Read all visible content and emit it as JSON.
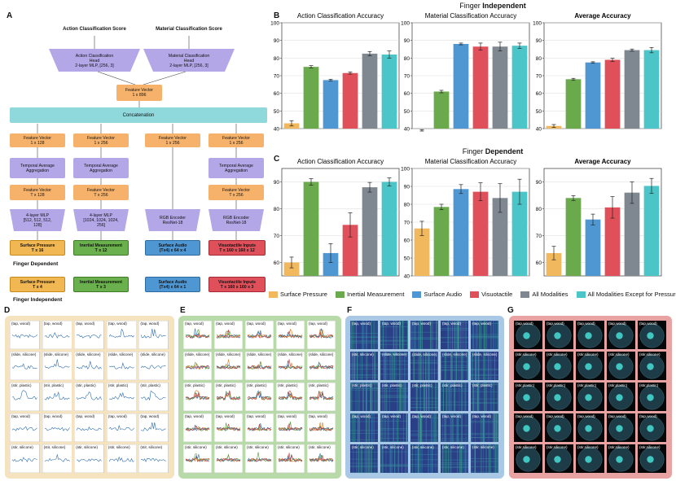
{
  "panels": {
    "a": "A",
    "b": "B",
    "c": "C",
    "d": "D",
    "e": "E",
    "f": "F",
    "g": "G"
  },
  "architecture": {
    "top_titles": [
      "Action Classification Score",
      "Material Classification Score"
    ],
    "heads": [
      [
        "Action Classification",
        "Head",
        "2-layer MLP, [256, 3]"
      ],
      [
        "Material Classification",
        "Head",
        "2-layer MLP, [256, 3]"
      ]
    ],
    "fused_vector": [
      "Feature Vector",
      "1 x 896"
    ],
    "concatenation": "Concatenation",
    "columns": [
      {
        "top": [
          "Feature Vector",
          "1 x 128"
        ],
        "agg": [
          "Temporal Average",
          "Aggregation"
        ],
        "mid": [
          "Feature Vector",
          "T x 128"
        ],
        "enc": [
          "4-layer MLP",
          "[512, 512, 512,",
          "128]"
        ],
        "input_dep": [
          "Surface Pressure",
          "T x 16"
        ],
        "input_ind": [
          "Surface Pressure",
          "T x 4"
        ]
      },
      {
        "top": [
          "Feature Vector",
          "1 x 256"
        ],
        "agg": [
          "Temporal Average",
          "Aggregation"
        ],
        "mid": [
          "Feature Vector",
          "T x 256"
        ],
        "enc": [
          "4-layer MLP",
          "[1024, 1024, 1024,",
          "256]"
        ],
        "input_dep": [
          "Inertial Measurement",
          "T x 12"
        ],
        "input_ind": [
          "Inertial Measurement",
          "T x 3"
        ]
      },
      {
        "top": [
          "Feature Vector",
          "1 x 256"
        ],
        "agg": null,
        "mid": null,
        "enc": [
          "RGB Encoder",
          "ResNet-18"
        ],
        "input_dep": [
          "Surface Audio",
          "(Tx4) x 64 x 4"
        ],
        "input_ind": [
          "Surface Audio",
          "(Tx4) x 64 x 1"
        ]
      },
      {
        "top": [
          "Feature Vector",
          "1 x 256"
        ],
        "agg": [
          "Temporal Average",
          "Aggregation"
        ],
        "mid": [
          "Feature Vector",
          "T x 256"
        ],
        "enc": [
          "RGB Encoder",
          "ResNet-18"
        ],
        "input_dep": [
          "Visuotactile Inputs",
          "T x 160 x 160 x 12"
        ],
        "input_ind": [
          "Visuotactile Inputs",
          "T x 160 x 160 x 3"
        ]
      }
    ],
    "label_dependent": "Finger Dependent",
    "label_independent": "Finger Independent"
  },
  "finger_independent_title": {
    "prefix": "Finger ",
    "bold": "Independent"
  },
  "finger_dependent_title": {
    "prefix": "Finger ",
    "bold": "Dependent"
  },
  "colors": [
    "#f2b85e",
    "#6aaa4c",
    "#4f97d3",
    "#e0505a",
    "#7f8790",
    "#4cc5c8"
  ],
  "chart_data": [
    {
      "type": "bar",
      "title": "Action Classification Accuracy",
      "ylim": [
        40,
        100
      ],
      "yticks": [
        40,
        50,
        60,
        70,
        80,
        90,
        100
      ],
      "values": [
        43,
        75,
        67.5,
        71.5,
        82.5,
        82
      ],
      "errors": [
        1.5,
        0.7,
        0.5,
        0.6,
        1.2,
        2.0
      ]
    },
    {
      "type": "bar",
      "title": "Material Classification Accuracy",
      "ylim": [
        40,
        100
      ],
      "yticks": [
        40,
        50,
        60,
        70,
        80,
        90,
        100
      ],
      "values": [
        39,
        61,
        88,
        86.5,
        86.5,
        87
      ],
      "errors": [
        0.4,
        0.7,
        0.5,
        2.0,
        2.5,
        1.5
      ]
    },
    {
      "type": "bar",
      "title": "Average Accuracy",
      "ylim": [
        40,
        100
      ],
      "yticks": [
        40,
        50,
        60,
        70,
        80,
        90,
        100
      ],
      "values": [
        41.5,
        68,
        77.5,
        79,
        84.5,
        84.5
      ],
      "errors": [
        0.8,
        0.5,
        0.4,
        0.9,
        0.6,
        1.5
      ]
    },
    {
      "type": "bar",
      "title": "Action Classification Accuracy",
      "ylim": [
        55,
        95
      ],
      "yticks": [
        60,
        70,
        80,
        90
      ],
      "values": [
        60,
        90,
        63.5,
        74,
        88,
        90
      ],
      "errors": [
        2.0,
        1.2,
        3.5,
        4.5,
        1.8,
        1.5
      ]
    },
    {
      "type": "bar",
      "title": "Material Classification Accuracy",
      "ylim": [
        40,
        100
      ],
      "yticks": [
        40,
        50,
        60,
        70,
        80,
        90,
        100
      ],
      "values": [
        66.5,
        78.5,
        88.5,
        87,
        83.5,
        87
      ],
      "errors": [
        4.0,
        1.5,
        2.5,
        5.0,
        8.0,
        7.0
      ]
    },
    {
      "type": "bar",
      "title": "Average Accuracy",
      "ylim": [
        55,
        95
      ],
      "yticks": [
        60,
        70,
        80,
        90
      ],
      "values": [
        63.5,
        84,
        76,
        80.5,
        86,
        88.5
      ],
      "errors": [
        2.5,
        0.9,
        2.0,
        4.0,
        4.0,
        2.8
      ]
    }
  ],
  "legend": [
    "Surface Pressure",
    "Inertial Measurement",
    "Surface Audio",
    "Visuotactile",
    "All Modalities",
    "All Modalities Except for Pressure"
  ],
  "grid_d": [
    [
      "(tap, wood)",
      "(tap, wood)",
      "(tap, wood)",
      "(tap, wood)",
      "(tap, wood)"
    ],
    [
      "(slide, silicone)",
      "(slide, silicone)",
      "(slide, silicone)",
      "(slide, silicone)",
      "(slide, silicone)"
    ],
    [
      "(stir, plastic)",
      "(stir, plastic)",
      "(stir, plastic)",
      "(stir, plastic)",
      "(stir, plastic)"
    ],
    [
      "(tap, wood)",
      "(tap, wood)",
      "(tap, wood)",
      "(tap, wood)",
      "(tap, wood)"
    ],
    [
      "(stir, silicone)",
      "(stir, silicone)",
      "(stir, silicone)",
      "(stir, silicone)",
      "(stir, silicone)"
    ]
  ],
  "grid_e": [
    [
      "(tap, wood)",
      "(tap, wood)",
      "(tap, wood)",
      "(tap, wood)",
      "(tap, wood)"
    ],
    [
      "(slide, silicone)",
      "(slide, silicone)",
      "(slide, silicone)",
      "(slide, silicone)",
      "(slide, silicone)"
    ],
    [
      "(stir, plastic)",
      "(stir, plastic)",
      "(stir, plastic)",
      "(stir, plastic)",
      "(stir, plastic)"
    ],
    [
      "(tap, wood)",
      "(tap, wood)",
      "(tap, wood)",
      "(tap, wood)",
      "(tap, wood)"
    ],
    [
      "(stir, silicone)",
      "(stir, silicone)",
      "(stir, silicone)",
      "(stir, silicone)",
      "(stir, silicone)"
    ]
  ],
  "grid_f": [
    [
      "(tap, wood)",
      "(tap, wood)",
      "(tap, wood)",
      "(tap, wood)",
      "(tap, wood)"
    ],
    [
      "(stir, silicone)",
      "(slide, silicone)",
      "(slide, silicone)",
      "(slide, silicone)",
      "(slide, silicone)"
    ],
    [
      "(stir, plastic)",
      "(stir, plastic)",
      "(stir, plastic)",
      "(stir, plastic)",
      "(stir, plastic)"
    ],
    [
      "(tap, wood)",
      "(tap, wood)",
      "(tap, wood)",
      "(tap, wood)",
      "(tap, wood)"
    ],
    [
      "(stir, silicone)",
      "(stir, silicone)",
      "(stir, silicone)",
      "(stir, silicone)",
      "(stir, silicone)"
    ]
  ],
  "grid_g": [
    [
      "(tap,wood)",
      "(tap,wood)",
      "(tap,wood)",
      "(tap,wood)",
      "(tap,wood)"
    ],
    [
      "(stir,silicone)",
      "(stir,silicone)",
      "(stir,silicone)",
      "(stir,silicone)",
      "(stir,silicone)"
    ],
    [
      "(stir,plastic)",
      "(stir,plastic)",
      "(stir,plastic)",
      "(stir,plastic)",
      "(stir,plastic)"
    ],
    [
      "(tap,wood)",
      "(tap,wood)",
      "(tap,wood)",
      "(tap,wood)",
      "(tap,wood)"
    ],
    [
      "(stir,silicone)",
      "(stir,silicone)",
      "(stir,silicone)",
      "(stir,silicone)",
      "(stir,silicone)"
    ]
  ]
}
